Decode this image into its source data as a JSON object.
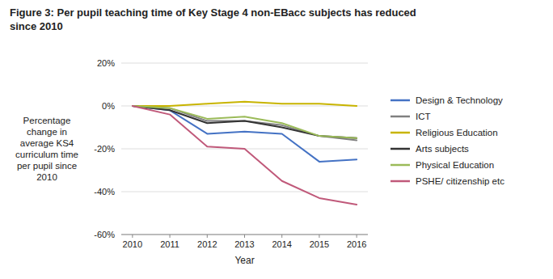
{
  "chart_data": {
    "type": "line",
    "title": "Figure 3: Per pupil teaching time of Key Stage 4 non-EBacc subjects has reduced\nsince 2010",
    "x_label": "Year",
    "y_label": "Percentage\nchange in\naverage KS4\ncurriculum time\nper pupil since\n2010",
    "x": [
      2010,
      2011,
      2012,
      2013,
      2014,
      2015,
      2016
    ],
    "series": [
      {
        "name": "Design & Technology",
        "color": "#4472C4",
        "values": [
          0,
          -2,
          -13,
          -12,
          -13,
          -26,
          -25
        ]
      },
      {
        "name": "ICT",
        "color": "#808080",
        "values": [
          0,
          -1,
          -7,
          -7,
          -9,
          -14,
          -16
        ]
      },
      {
        "name": "Religious Education",
        "color": "#C8B400",
        "values": [
          0,
          0,
          1,
          2,
          1,
          1,
          0
        ]
      },
      {
        "name": "Arts subjects",
        "color": "#333333",
        "values": [
          0,
          -2,
          -8,
          -7,
          -10,
          -14,
          -15
        ]
      },
      {
        "name": "Physical Education",
        "color": "#9BBB59",
        "values": [
          0,
          -1,
          -6,
          -5,
          -8,
          -14,
          -15
        ]
      },
      {
        "name": "PSHE/ citizenship etc",
        "color": "#C0597A",
        "values": [
          0,
          -4,
          -19,
          -20,
          -35,
          -43,
          -46
        ]
      }
    ],
    "xlim": [
      2009.7,
      2016.3
    ],
    "xticks": [
      2010,
      2011,
      2012,
      2013,
      2014,
      2015,
      2016
    ],
    "ylim": [
      -60,
      20
    ],
    "yticks": [
      {
        "value": -60,
        "label": "-60%"
      },
      {
        "value": -40,
        "label": "-40%"
      },
      {
        "value": -20,
        "label": "-20%"
      },
      {
        "value": 0,
        "label": "0%"
      },
      {
        "value": 20,
        "label": "20%"
      }
    ],
    "grid": true,
    "legend": "right"
  }
}
